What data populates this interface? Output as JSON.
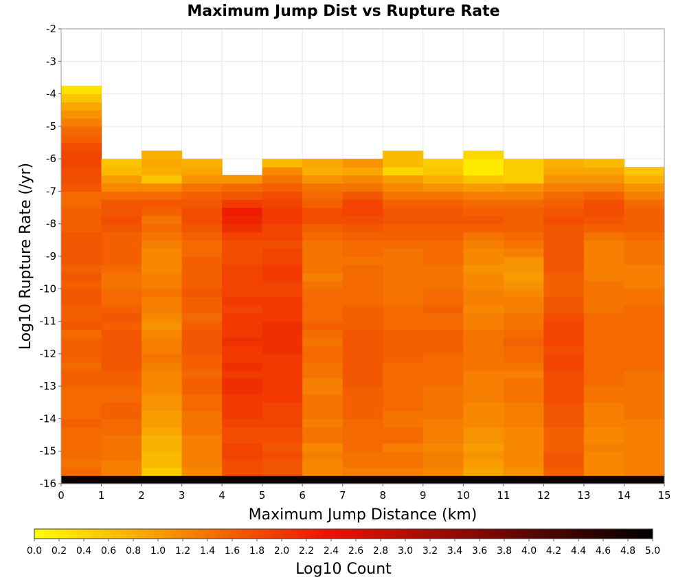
{
  "chart_data": {
    "type": "heatmap",
    "title": "Maximum Jump Dist vs Rupture Rate",
    "xlabel": "Maximum Jump Distance (km)",
    "ylabel": "Log10 Rupture Rate (/yr)",
    "colorbar_label": "Log10 Count",
    "xlim": [
      0,
      15
    ],
    "ylim": [
      -16,
      -2
    ],
    "x_ticks": [
      "0",
      "1",
      "2",
      "3",
      "4",
      "5",
      "6",
      "7",
      "8",
      "9",
      "10",
      "11",
      "12",
      "13",
      "14",
      "15"
    ],
    "y_ticks": [
      "-2",
      "-3",
      "-4",
      "-5",
      "-6",
      "-7",
      "-8",
      "-9",
      "-10",
      "-11",
      "-12",
      "-13",
      "-14",
      "-15",
      "-16"
    ],
    "colorbar_ticks": [
      "0.0",
      "0.2",
      "0.4",
      "0.6",
      "0.8",
      "1.0",
      "1.2",
      "1.4",
      "1.6",
      "1.8",
      "2.0",
      "2.2",
      "2.4",
      "2.6",
      "2.8",
      "3.0",
      "3.2",
      "3.4",
      "3.6",
      "3.8",
      "4.0",
      "4.2",
      "4.4",
      "4.6",
      "4.8",
      "5.0"
    ],
    "color_range": [
      0,
      5
    ],
    "x_bin_width": 1,
    "y_bin_width": 0.25,
    "x_bin_starts": [
      0,
      1,
      2,
      3,
      4,
      5,
      6,
      7,
      8,
      9,
      10,
      11,
      12,
      13,
      14
    ],
    "y_bin_start": -16,
    "columns_log10_count": [
      [
        4.9,
        1.5,
        1.4,
        1.5,
        1.5,
        1.5,
        1.5,
        1.6,
        1.5,
        1.5,
        1.5,
        1.5,
        1.6,
        1.6,
        1.5,
        1.6,
        1.6,
        1.6,
        1.5,
        1.7,
        1.6,
        1.6,
        1.7,
        1.7,
        1.6,
        1.7,
        1.6,
        1.7,
        1.7,
        1.7,
        1.7,
        1.6,
        1.6,
        1.6,
        1.5,
        1.5,
        1.7,
        1.8,
        1.8,
        1.9,
        1.9,
        1.8,
        1.6,
        1.5,
        1.3,
        1.1,
        0.9,
        0.6,
        0.3
      ],
      [
        4.9,
        1.3,
        1.3,
        1.4,
        1.4,
        1.4,
        1.5,
        1.5,
        1.6,
        1.6,
        1.5,
        1.5,
        1.6,
        1.6,
        1.7,
        1.7,
        1.7,
        1.7,
        1.7,
        1.6,
        1.7,
        1.6,
        1.5,
        1.5,
        1.4,
        1.4,
        1.5,
        1.6,
        1.6,
        1.6,
        1.6,
        1.7,
        1.8,
        1.7,
        1.7,
        1.5,
        1.2,
        1.0,
        0.7,
        0.6
      ],
      [
        4.9,
        0.5,
        0.7,
        0.7,
        0.8,
        0.8,
        0.9,
        1.0,
        1.0,
        1.1,
        1.1,
        1.2,
        1.2,
        1.2,
        1.3,
        1.4,
        1.3,
        1.3,
        1.2,
        1.1,
        1.2,
        1.3,
        1.3,
        1.4,
        1.3,
        1.3,
        1.2,
        1.2,
        1.2,
        1.3,
        1.4,
        1.5,
        1.4,
        1.6,
        1.7,
        1.5,
        1.2,
        0.6,
        0.8,
        0.9,
        0.8
      ],
      [
        4.9,
        1.2,
        1.3,
        1.3,
        1.3,
        1.3,
        1.4,
        1.4,
        1.4,
        1.5,
        1.5,
        1.6,
        1.6,
        1.5,
        1.6,
        1.6,
        1.7,
        1.7,
        1.7,
        1.6,
        1.5,
        1.6,
        1.6,
        1.7,
        1.6,
        1.6,
        1.6,
        1.6,
        1.5,
        1.5,
        1.6,
        1.7,
        1.8,
        1.8,
        1.7,
        1.6,
        1.4,
        1.1,
        0.9,
        0.8
      ],
      [
        4.9,
        1.8,
        1.8,
        1.9,
        1.9,
        1.8,
        1.8,
        1.9,
        2.0,
        2.0,
        2.0,
        2.1,
        2.1,
        2.0,
        2.1,
        2.0,
        2.0,
        2.1,
        2.0,
        2.0,
        2.0,
        1.9,
        2.0,
        1.9,
        1.9,
        1.9,
        1.9,
        1.8,
        1.8,
        1.8,
        1.9,
        2.1,
        2.2,
        2.3,
        2.0,
        1.7,
        1.5,
        1.1
      ],
      [
        4.9,
        1.7,
        1.7,
        1.8,
        1.7,
        1.8,
        1.8,
        1.9,
        1.9,
        1.9,
        2.0,
        2.0,
        2.0,
        2.0,
        2.0,
        2.0,
        2.1,
        2.1,
        2.1,
        2.1,
        2.0,
        2.0,
        2.0,
        1.9,
        1.9,
        2.0,
        2.0,
        1.9,
        1.9,
        1.8,
        1.9,
        1.9,
        2.0,
        2.0,
        1.9,
        1.8,
        1.6,
        1.4,
        1.2,
        0.7
      ],
      [
        4.9,
        1.2,
        1.2,
        1.3,
        1.2,
        1.4,
        1.4,
        1.3,
        1.4,
        1.4,
        1.4,
        1.3,
        1.3,
        1.4,
        1.4,
        1.5,
        1.5,
        1.4,
        1.5,
        1.6,
        1.5,
        1.5,
        1.5,
        1.5,
        1.4,
        1.3,
        1.4,
        1.4,
        1.4,
        1.4,
        1.5,
        1.6,
        1.8,
        1.8,
        1.6,
        1.5,
        1.4,
        1.1,
        0.8,
        0.9
      ],
      [
        4.9,
        1.3,
        1.4,
        1.4,
        1.5,
        1.5,
        1.5,
        1.5,
        1.6,
        1.6,
        1.6,
        1.6,
        1.7,
        1.7,
        1.7,
        1.7,
        1.7,
        1.7,
        1.7,
        1.6,
        1.6,
        1.6,
        1.5,
        1.5,
        1.5,
        1.5,
        1.5,
        1.4,
        1.5,
        1.5,
        1.6,
        1.7,
        1.8,
        1.9,
        1.9,
        1.7,
        1.4,
        1.2,
        0.9,
        1.1
      ],
      [
        4.9,
        1.3,
        1.4,
        1.4,
        1.3,
        1.5,
        1.5,
        1.4,
        1.4,
        1.5,
        1.5,
        1.5,
        1.5,
        1.5,
        1.5,
        1.6,
        1.6,
        1.6,
        1.6,
        1.5,
        1.5,
        1.5,
        1.4,
        1.4,
        1.4,
        1.4,
        1.4,
        1.4,
        1.4,
        1.5,
        1.6,
        1.6,
        1.7,
        1.7,
        1.6,
        1.4,
        1.2,
        1.0,
        0.4,
        0.7,
        0.7
      ],
      [
        4.9,
        1.2,
        1.3,
        1.3,
        1.2,
        1.3,
        1.3,
        1.3,
        1.4,
        1.4,
        1.4,
        1.4,
        1.5,
        1.5,
        1.5,
        1.5,
        1.6,
        1.6,
        1.6,
        1.5,
        1.5,
        1.6,
        1.5,
        1.5,
        1.4,
        1.4,
        1.4,
        1.5,
        1.5,
        1.5,
        1.6,
        1.6,
        1.7,
        1.7,
        1.6,
        1.4,
        1.1,
        0.8,
        0.6,
        0.5
      ],
      [
        4.9,
        0.9,
        1.0,
        1.1,
        1.0,
        1.1,
        1.1,
        1.2,
        1.2,
        1.2,
        1.3,
        1.3,
        1.3,
        1.3,
        1.4,
        1.4,
        1.4,
        1.4,
        1.4,
        1.3,
        1.3,
        1.2,
        1.3,
        1.3,
        1.2,
        1.2,
        1.1,
        1.2,
        1.2,
        1.3,
        1.4,
        1.6,
        1.7,
        1.6,
        1.5,
        1.3,
        1.0,
        0.6,
        0.2,
        0.2,
        0.4
      ],
      [
        4.9,
        1.1,
        1.2,
        1.2,
        1.2,
        1.2,
        1.2,
        1.3,
        1.3,
        1.3,
        1.4,
        1.4,
        1.4,
        1.3,
        1.4,
        1.5,
        1.5,
        1.6,
        1.5,
        1.4,
        1.4,
        1.3,
        1.3,
        1.2,
        1.1,
        1.0,
        1.1,
        1.1,
        1.3,
        1.4,
        1.5,
        1.6,
        1.6,
        1.6,
        1.5,
        1.3,
        1.1,
        0.5,
        0.5,
        0.5
      ],
      [
        4.9,
        1.6,
        1.7,
        1.7,
        1.6,
        1.6,
        1.6,
        1.7,
        1.7,
        1.7,
        1.8,
        1.8,
        1.8,
        1.8,
        1.9,
        1.9,
        1.8,
        1.9,
        1.9,
        1.9,
        1.8,
        1.7,
        1.7,
        1.6,
        1.6,
        1.6,
        1.7,
        1.7,
        1.7,
        1.7,
        1.7,
        1.7,
        1.8,
        1.7,
        1.6,
        1.5,
        1.3,
        1.1,
        0.9,
        0.8
      ],
      [
        4.9,
        1.2,
        1.2,
        1.2,
        1.3,
        1.2,
        1.2,
        1.3,
        1.3,
        1.3,
        1.4,
        1.4,
        1.5,
        1.5,
        1.5,
        1.5,
        1.5,
        1.5,
        1.5,
        1.5,
        1.5,
        1.4,
        1.4,
        1.4,
        1.4,
        1.3,
        1.3,
        1.3,
        1.3,
        1.3,
        1.4,
        1.6,
        1.7,
        1.8,
        1.8,
        1.6,
        1.3,
        1.1,
        0.9,
        0.7
      ],
      [
        4.9,
        1.3,
        1.3,
        1.3,
        1.3,
        1.3,
        1.3,
        1.3,
        1.4,
        1.4,
        1.4,
        1.4,
        1.4,
        1.4,
        1.5,
        1.5,
        1.5,
        1.5,
        1.5,
        1.5,
        1.5,
        1.5,
        1.4,
        1.4,
        1.3,
        1.3,
        1.3,
        1.4,
        1.4,
        1.4,
        1.5,
        1.6,
        1.6,
        1.6,
        1.5,
        1.3,
        1.1,
        0.8,
        0.6
      ]
    ]
  }
}
